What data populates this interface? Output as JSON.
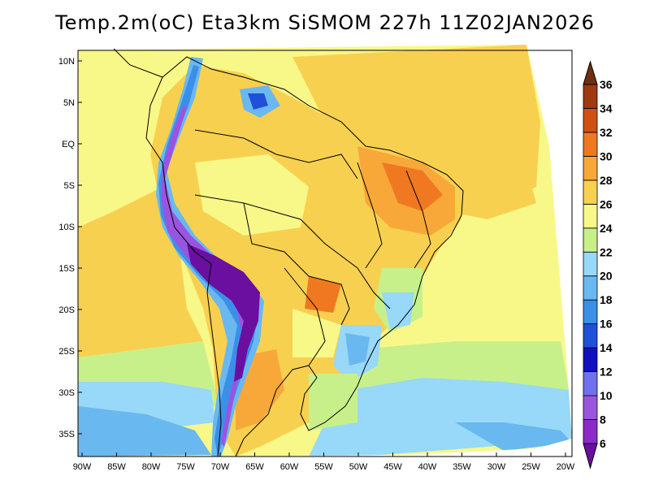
{
  "title": "Temp.2m(oC) Eta3km SiSMOM 227h 11Z02JAN2026",
  "map": {
    "lat_ticks": [
      "10N",
      "5N",
      "EQ",
      "5S",
      "10S",
      "15S",
      "20S",
      "25S",
      "30S",
      "35S"
    ],
    "lon_ticks": [
      "90W",
      "85W",
      "80W",
      "75W",
      "70W",
      "65W",
      "60W",
      "55W",
      "50W",
      "45W",
      "40W",
      "35W",
      "30W",
      "25W",
      "20W"
    ]
  },
  "colorbar": {
    "levels": [
      "6",
      "8",
      "10",
      "12",
      "14",
      "16",
      "18",
      "20",
      "22",
      "24",
      "26",
      "28",
      "30",
      "32",
      "34",
      "36"
    ],
    "colors": [
      "#6a0fa0",
      "#8a2bc8",
      "#9a55e0",
      "#7070f0",
      "#1010c0",
      "#2050d8",
      "#3a90e8",
      "#6ab8f0",
      "#98d8f8",
      "#c8f08a",
      "#f8f888",
      "#f8d050",
      "#f8a838",
      "#f07820",
      "#d05010",
      "#a03810",
      "#703010"
    ]
  }
}
